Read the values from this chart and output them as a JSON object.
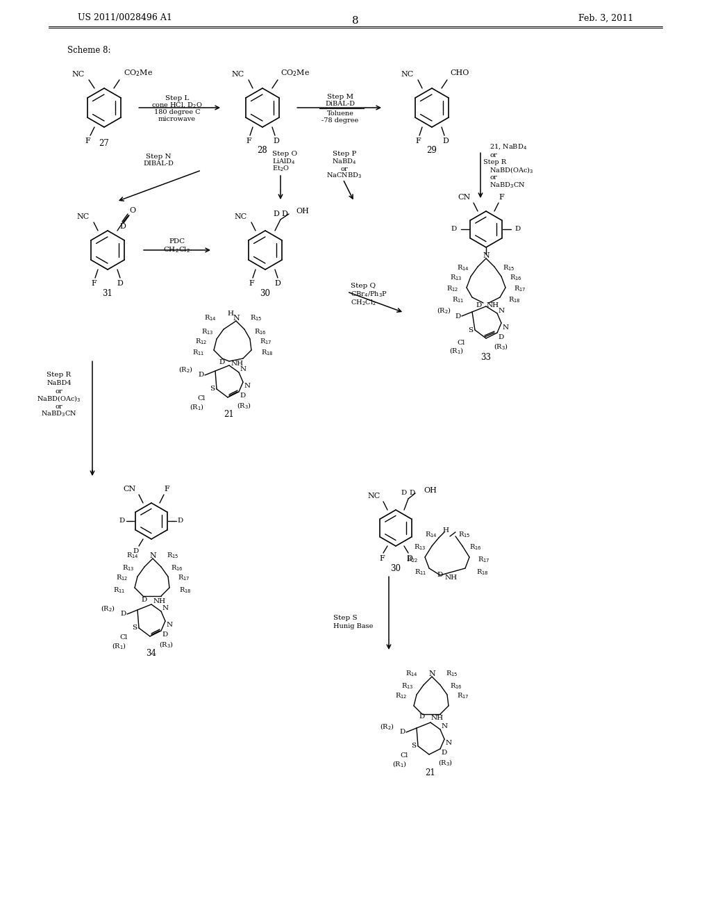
{
  "bg": "#ffffff",
  "header_left": "US 2011/0028496 A1",
  "header_center": "8",
  "header_right": "Feb. 3, 2011",
  "scheme_label": "Scheme 8:"
}
